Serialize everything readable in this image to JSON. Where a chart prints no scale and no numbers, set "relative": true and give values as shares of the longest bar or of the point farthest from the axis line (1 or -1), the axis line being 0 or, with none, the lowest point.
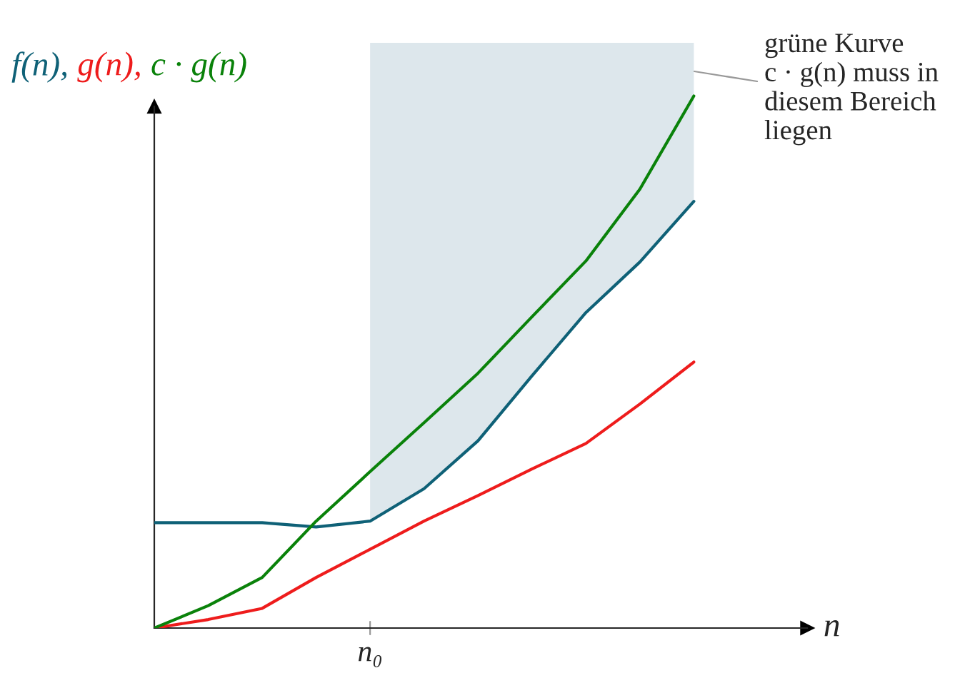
{
  "chart_data": {
    "type": "line",
    "relative": true,
    "xlabel": "n",
    "ylabel": "f(n), g(n), c · g(n)",
    "categories": [
      null,
      null,
      null,
      null,
      null,
      null,
      null,
      null,
      null,
      null,
      null
    ],
    "series": [
      {
        "color": "#0f6177",
        "values": [
          0.198,
          0.198,
          0.198,
          0.19,
          0.201,
          0.262,
          0.352,
          0.474,
          0.593,
          0.688,
          0.802
        ]
      },
      {
        "color": "#ee1c1c",
        "values": [
          0,
          0.016,
          0.037,
          0.095,
          0.148,
          0.201,
          0.249,
          0.299,
          0.347,
          0.421,
          0.5
        ]
      },
      {
        "color": "#0a820a",
        "values": [
          0,
          0.042,
          0.095,
          0.201,
          0.294,
          0.386,
          0.479,
          0.585,
          0.69,
          0.825,
          1
        ]
      }
    ],
    "annotations": [
      "n₀",
      "grüne Kurve\nc · g(n) muss in\ndiesem Bereich\nliegen"
    ],
    "legend": false,
    "line_style": "solid",
    "marker": "none"
  }
}
